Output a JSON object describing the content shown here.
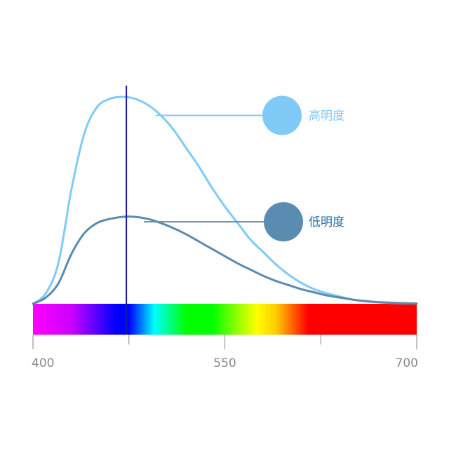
{
  "chart_data": {
    "type": "line",
    "xlim": [
      400,
      700
    ],
    "x_ticks": [
      400,
      550,
      700
    ],
    "x_minor_ticks": [
      400,
      475,
      550,
      625,
      700
    ],
    "ylim": [
      0,
      1
    ],
    "peak_marker_x": 473,
    "spectrum_stops": [
      {
        "x": 400,
        "color": "#ff00ff"
      },
      {
        "x": 430,
        "color": "#cc00ff"
      },
      {
        "x": 465,
        "color": "#0000ff"
      },
      {
        "x": 475,
        "color": "#0000ff"
      },
      {
        "x": 495,
        "color": "#00ffff"
      },
      {
        "x": 520,
        "color": "#00ff00"
      },
      {
        "x": 540,
        "color": "#00ff00"
      },
      {
        "x": 575,
        "color": "#ffff00"
      },
      {
        "x": 590,
        "color": "#ffcc00"
      },
      {
        "x": 615,
        "color": "#ff0000"
      },
      {
        "x": 700,
        "color": "#ff0000"
      }
    ],
    "series": [
      {
        "name": "高明度",
        "color": "#80caf8",
        "label_color": "#80caf8",
        "points": [
          [
            400,
            0.0
          ],
          [
            410,
            0.05
          ],
          [
            420,
            0.2
          ],
          [
            430,
            0.55
          ],
          [
            440,
            0.82
          ],
          [
            450,
            0.95
          ],
          [
            460,
            0.99
          ],
          [
            470,
            1.0
          ],
          [
            480,
            0.99
          ],
          [
            490,
            0.96
          ],
          [
            500,
            0.91
          ],
          [
            510,
            0.84
          ],
          [
            520,
            0.75
          ],
          [
            530,
            0.66
          ],
          [
            540,
            0.56
          ],
          [
            550,
            0.47
          ],
          [
            560,
            0.39
          ],
          [
            570,
            0.31
          ],
          [
            580,
            0.25
          ],
          [
            590,
            0.19
          ],
          [
            600,
            0.14
          ],
          [
            610,
            0.1
          ],
          [
            620,
            0.07
          ],
          [
            630,
            0.05
          ],
          [
            640,
            0.035
          ],
          [
            650,
            0.02
          ],
          [
            660,
            0.012
          ],
          [
            670,
            0.007
          ],
          [
            680,
            0.004
          ],
          [
            690,
            0.002
          ],
          [
            700,
            0.001
          ]
        ]
      },
      {
        "name": "低明度",
        "color": "#5a8bb0",
        "label_color": "#1f6fb0",
        "points": [
          [
            400,
            0.0
          ],
          [
            410,
            0.03
          ],
          [
            420,
            0.1
          ],
          [
            430,
            0.24
          ],
          [
            440,
            0.34
          ],
          [
            450,
            0.39
          ],
          [
            460,
            0.41
          ],
          [
            470,
            0.42
          ],
          [
            480,
            0.42
          ],
          [
            490,
            0.41
          ],
          [
            500,
            0.39
          ],
          [
            510,
            0.365
          ],
          [
            520,
            0.335
          ],
          [
            530,
            0.3
          ],
          [
            540,
            0.265
          ],
          [
            550,
            0.23
          ],
          [
            560,
            0.195
          ],
          [
            570,
            0.165
          ],
          [
            580,
            0.135
          ],
          [
            590,
            0.11
          ],
          [
            600,
            0.09
          ],
          [
            610,
            0.07
          ],
          [
            620,
            0.055
          ],
          [
            630,
            0.04
          ],
          [
            640,
            0.03
          ],
          [
            650,
            0.02
          ],
          [
            660,
            0.013
          ],
          [
            670,
            0.008
          ],
          [
            680,
            0.005
          ],
          [
            690,
            0.003
          ],
          [
            700,
            0.001
          ]
        ]
      }
    ]
  }
}
